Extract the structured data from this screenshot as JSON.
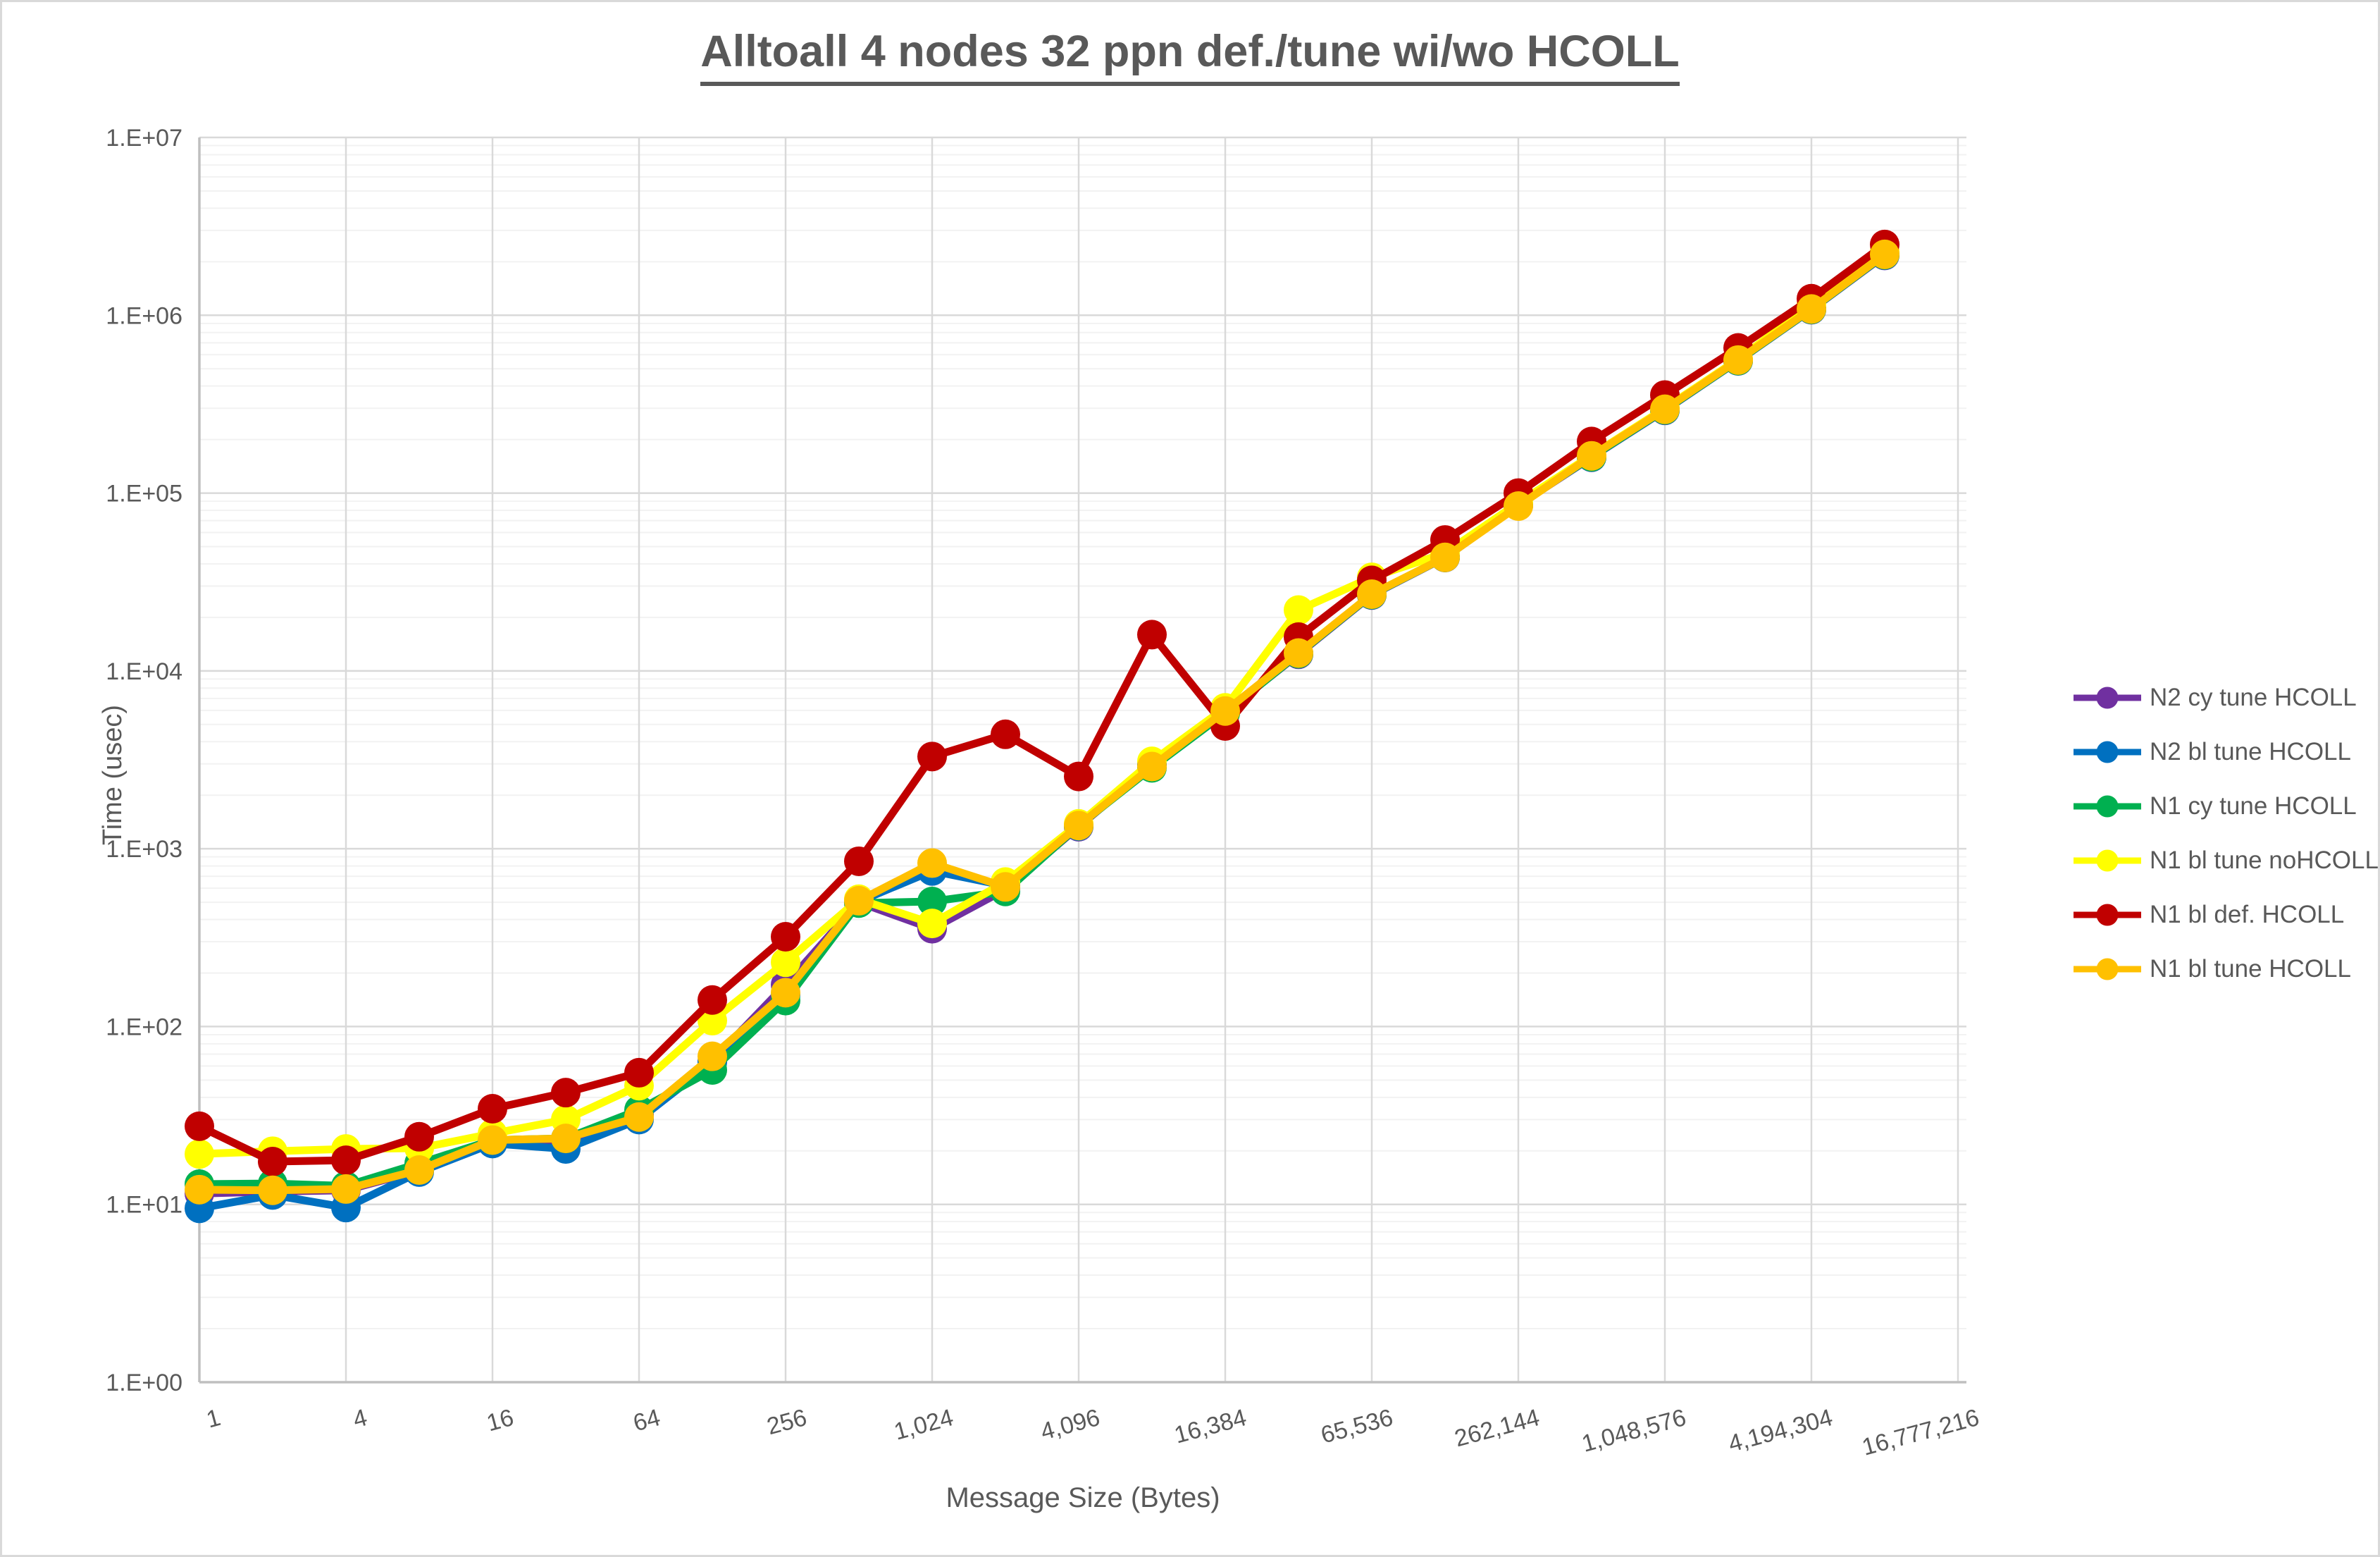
{
  "title": "Alltoall 4 nodes 32 ppn def./tune wi/wo HCOLL",
  "chart_data": {
    "type": "line",
    "title": "Alltoall 4 nodes 32 ppn def./tune wi/wo HCOLL",
    "xlabel": "Message Size (Bytes)",
    "ylabel": "Time (usec)",
    "x_scale": "log2-categories",
    "y_scale": "log10",
    "ylim": [
      1,
      10000000
    ],
    "grid": "major and minor gridlines on",
    "legend_position": "right",
    "y_tick_labels": [
      "1.E+00",
      "1.E+01",
      "1.E+02",
      "1.E+03",
      "1.E+04",
      "1.E+05",
      "1.E+06",
      "1.E+07"
    ],
    "x_tick_labels": [
      "1",
      "4",
      "16",
      "64",
      "256",
      "1,024",
      "4,096",
      "16,384",
      "65,536",
      "262,144",
      "1,048,576",
      "4,194,304",
      "16,777,216"
    ],
    "x": [
      1,
      2,
      4,
      8,
      16,
      32,
      64,
      128,
      256,
      512,
      1024,
      2048,
      4096,
      8192,
      16384,
      32768,
      65536,
      131072,
      262144,
      524288,
      1048576,
      2097152,
      4194304,
      8388608
    ],
    "series": [
      {
        "name": "N2 cy tune HCOLL",
        "color": "#7030A0",
        "values": [
          11.5,
          11.8,
          12,
          15.5,
          22.5,
          22.5,
          32,
          64,
          172,
          500,
          355,
          590,
          1330,
          2950,
          5850,
          12400,
          26700,
          43400,
          85500,
          159000,
          292000,
          554000,
          1075000,
          2170000
        ]
      },
      {
        "name": "N2 bl tune HCOLL",
        "color": "#0070C0",
        "values": [
          9.5,
          11.3,
          9.6,
          15.2,
          22,
          20.5,
          30,
          63,
          150,
          505,
          750,
          620,
          1340,
          2980,
          5900,
          12500,
          26800,
          43500,
          85800,
          159500,
          293000,
          555000,
          1078000,
          2180000
        ]
      },
      {
        "name": "N1 cy tune HCOLL",
        "color": "#00B050",
        "values": [
          13,
          13.1,
          12.7,
          17,
          23,
          23.5,
          34,
          57,
          140,
          495,
          505,
          575,
          1350,
          2850,
          5800,
          12500,
          26900,
          43500,
          86000,
          160000,
          294000,
          556000,
          1080000,
          2190000
        ]
      },
      {
        "name": "N1 bl tune noHCOLL",
        "color": "#FFFF00",
        "values": [
          19.2,
          19.9,
          20.5,
          20.7,
          25,
          30,
          46.5,
          108,
          230,
          520,
          380,
          650,
          1380,
          3100,
          6200,
          22000,
          33600,
          46000,
          88000,
          163000,
          300000,
          565000,
          1150000,
          2280000
        ]
      },
      {
        "name": "N1 bl def. HCOLL",
        "color": "#C00000",
        "values": [
          27.5,
          17.4,
          17.7,
          24,
          34.5,
          42.5,
          55,
          141,
          320,
          850,
          3300,
          4400,
          2550,
          16000,
          4900,
          15500,
          32300,
          54500,
          100000,
          195000,
          356000,
          655000,
          1240000,
          2500000
        ]
      },
      {
        "name": "N1 bl tune HCOLL",
        "color": "#FFC000",
        "values": [
          12.1,
          12,
          12.2,
          15.6,
          23,
          23.5,
          31,
          68,
          155,
          510,
          830,
          610,
          1350,
          2900,
          5950,
          12600,
          27000,
          43500,
          84500,
          162000,
          296000,
          560000,
          1085000,
          2200000
        ]
      }
    ]
  },
  "style": {
    "text_color": "#595959",
    "major_grid_color": "#D9D9D9",
    "minor_grid_color": "#F2F2F2",
    "axis_line_color": "#BFBFBF",
    "background": "#FFFFFF"
  }
}
